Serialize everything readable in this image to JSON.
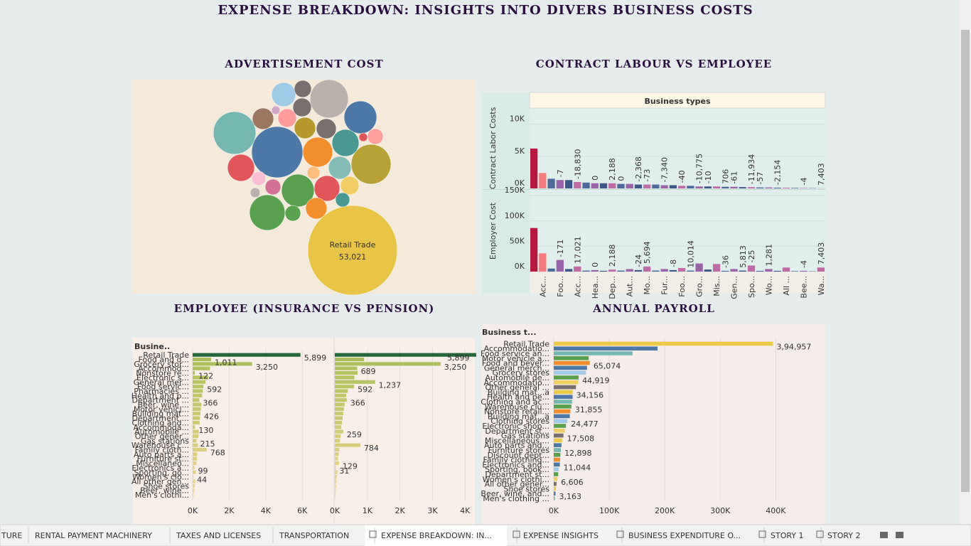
{
  "title": "EXPENSE BREAKDOWN: INSIGHTS INTO DIVERS BUSINESS COSTS",
  "tabs": [
    "TURE",
    "RENTAL PAYMENT MACHINERY",
    "TAXES AND LICENSES",
    "TRANSPORTATION",
    "EXPENSE BREAKDOWN: IN...",
    "EXPENSE INSIGHTS",
    "BUSINESS EXPENDITURE O...",
    "STORY 1",
    "STORY 2"
  ],
  "chart_data": [
    {
      "type": "bubble",
      "title": "ADVERTISEMENT COST",
      "categories": [
        "Retail Trade",
        null,
        null,
        null,
        null,
        null,
        null,
        null,
        null,
        null,
        null,
        null,
        null,
        null,
        null,
        null,
        null,
        null,
        null,
        null,
        null,
        null,
        null,
        null,
        null,
        null,
        null,
        null,
        null,
        null,
        null
      ],
      "values": [
        53021,
        17300,
        12000,
        9740,
        10470,
        7070,
        8350,
        7070,
        4820,
        5890,
        4820,
        4330,
        3860,
        3420,
        3005,
        3005,
        3005,
        2620,
        2260,
        2260,
        2260,
        1920,
        1615,
        1615,
        1615,
        1335,
        1335,
        1080,
        655,
        480,
        480
      ],
      "value_labels": [
        "53,021",
        null,
        null,
        null,
        null,
        null,
        null,
        null,
        null,
        null,
        null,
        null,
        null,
        null,
        null,
        null,
        null,
        null,
        null,
        null,
        null,
        null,
        null,
        null,
        null,
        null,
        null,
        null,
        null,
        null,
        null
      ],
      "colors": [
        "#e8c547",
        "#4e79a7",
        "#76b7b2",
        "#bab0ac",
        "#b8a135",
        "#4e79a7",
        "#59a14f",
        "#59a14f",
        "#e15759",
        "#f28e2b",
        "#499894",
        "#e15759",
        "#a0cbe8",
        "#86bcb6",
        "#b6992d",
        "#f28e2b",
        "#9d7660",
        "#79706e",
        "#ff9d9a",
        "#f1ce63",
        "#79706e",
        "#79706e",
        "#ff9d9a",
        "#d37295",
        "#59a14f",
        "#499894",
        "#fabfd2",
        "#ffbe7d",
        "#bab0ac",
        "#e15759",
        "#d4a6c8"
      ]
    },
    {
      "type": "bar",
      "title": "CONTRACT LABOUR VS EMPLOYEE",
      "header": "Business types",
      "categories": [
        null,
        "Acc...",
        null,
        "Foo...",
        null,
        "Acc...",
        null,
        "Hea...",
        null,
        "Dep...",
        null,
        "Aut...",
        null,
        "Mo...",
        null,
        "Fur...",
        null,
        "Foo...",
        null,
        "Gro...",
        null,
        "Mis...",
        null,
        "Gen...",
        null,
        "Spo...",
        null,
        "Wo...",
        null,
        "All ...",
        null,
        "Bee...",
        null,
        "Wa..."
      ],
      "colors": [
        "#b5173f",
        "#f47c7c",
        "#4e6a9c",
        "#9a62a9",
        "#3e5688",
        "#c06aa6",
        "#4e6a9c",
        "#9a62a9",
        "#3e5688",
        "#c06aa6",
        "#4e6a9c",
        "#9a62a9",
        "#3e5688",
        "#c06aa6",
        "#4e6a9c",
        "#9a62a9",
        "#3e5688",
        "#c06aa6",
        "#4e6a9c",
        "#9a62a9",
        "#3e5688",
        "#c06aa6",
        "#4e6a9c",
        "#9a62a9",
        "#3e5688",
        "#c06aa6",
        "#4e6a9c",
        "#9a62a9",
        "#3e5688",
        "#c06aa6",
        "#4e6a9c",
        "#9a62a9",
        "#3e5688",
        "#c06aa6"
      ],
      "grid": true,
      "series": [
        {
          "name": "Contract Labor Costs",
          "ylim": [
            0,
            12500
          ],
          "yticks": [
            {
              "value": 0,
              "label": "0K"
            },
            {
              "value": 5000,
              "label": "5K"
            },
            {
              "value": 10000,
              "label": "10K"
            }
          ],
          "values": [
            6200,
            2400,
            1500,
            1300,
            1300,
            1000,
            900,
            800,
            800,
            800,
            700,
            700,
            600,
            600,
            600,
            500,
            500,
            400,
            400,
            300,
            300,
            300,
            250,
            250,
            200,
            200,
            150,
            150,
            100,
            100,
            80,
            60,
            40,
            20
          ],
          "annotations": [
            null,
            null,
            null,
            "-7",
            null,
            "-18,830",
            null,
            "0",
            null,
            "2,188",
            "0",
            null,
            "-2,368",
            "-73",
            null,
            "-7,340",
            null,
            "-40",
            null,
            "-10,775",
            "-10",
            null,
            "706",
            "-61",
            null,
            "-11,934",
            "-57",
            null,
            "-2,154",
            null,
            null,
            "-4",
            null,
            "7,403"
          ]
        },
        {
          "name": "Employer Cost",
          "ylim": [
            0,
            160000
          ],
          "yticks": [
            {
              "value": 0,
              "label": "0K"
            },
            {
              "value": 50000,
              "label": "50K"
            },
            {
              "value": 100000,
              "label": "100K"
            },
            {
              "value": 150000,
              "label": "150K"
            }
          ],
          "values": [
            86000,
            36000,
            6000,
            23000,
            5000,
            10000,
            2000,
            3000,
            1500,
            4000,
            2000,
            5000,
            3000,
            10000,
            2000,
            5000,
            3000,
            7000,
            2000,
            16000,
            4000,
            15000,
            1500,
            5000,
            2000,
            12000,
            1500,
            5000,
            1500,
            8000,
            1000,
            1500,
            500,
            8000
          ],
          "annotations": [
            null,
            null,
            null,
            "-171",
            null,
            "17,021",
            null,
            "0",
            null,
            "2,188",
            null,
            null,
            "-24",
            "5,694",
            null,
            null,
            "-8",
            null,
            "10,014",
            null,
            null,
            null,
            "-36",
            null,
            "5,813",
            "-25",
            null,
            "1,281",
            null,
            null,
            null,
            "-4",
            null,
            "7,403"
          ]
        }
      ]
    },
    {
      "type": "barh",
      "title": "EMPLOYEE (INSURANCE VS PENSION)",
      "header": "Busine..",
      "top_color": "#22683a",
      "color_range": [
        "#a9bf58",
        "#f1d692"
      ],
      "grid": true,
      "categories": [
        "Retail Trade",
        "Food and d...",
        "Grocery stor...",
        "Accommod...",
        "Nonstore re...",
        "Electronic s...",
        "General mer...",
        "Food servic...",
        "Pharmacies ...",
        "Health and p...",
        "Department ...",
        "Beer, wine ...",
        "Motor vehicl...",
        "Building mat...",
        "Department ...",
        "Clothing and...",
        "Accommoda...",
        "Automobile ...",
        "Other gener...",
        "Gas stations",
        "Warehouse c...",
        "Family cloth...",
        "Auto parts a...",
        "Furniture st...",
        "Miscellaneo...",
        "Electronics a...",
        "Sporting, go...",
        "Women's clo...",
        "All other gen...",
        "Shoe stores",
        "Beer, wine...",
        "Men's clothi..."
      ],
      "series": [
        {
          "xlim": [
            0,
            7700
          ],
          "xticks": [
            {
              "value": 0,
              "label": "0K"
            },
            {
              "value": 2000,
              "label": "2K"
            },
            {
              "value": 4000,
              "label": "4K"
            },
            {
              "value": 6000,
              "label": "6K"
            }
          ],
          "values": [
            5899,
            1011,
            3250,
            950,
            122,
            850,
            700,
            592,
            560,
            520,
            366,
            480,
            450,
            426,
            400,
            380,
            130,
            340,
            320,
            215,
            290,
            768,
            250,
            230,
            210,
            99,
            180,
            44,
            150,
            120,
            90,
            60
          ],
          "value_labels": [
            "5,899",
            "1,011",
            "3,250",
            null,
            "122",
            null,
            null,
            "592",
            null,
            null,
            "366",
            null,
            null,
            "426",
            null,
            null,
            "130",
            null,
            null,
            "215",
            null,
            "768",
            null,
            null,
            null,
            "99",
            null,
            "44",
            null,
            null,
            null,
            null
          ]
        },
        {
          "xlim": [
            0,
            4300
          ],
          "xticks": [
            {
              "value": 0,
              "label": "0K"
            },
            {
              "value": 1000,
              "label": "1K"
            },
            {
              "value": 2000,
              "label": "2K"
            },
            {
              "value": 3000,
              "label": "3K"
            },
            {
              "value": 4000,
              "label": "4K"
            }
          ],
          "values": [
            5899,
            900,
            3250,
            689,
            700,
            600,
            1237,
            592,
            400,
            350,
            366,
            300,
            280,
            260,
            240,
            220,
            200,
            259,
            180,
            160,
            784,
            140,
            120,
            100,
            129,
            31,
            80,
            60,
            50,
            40,
            30,
            20
          ],
          "value_labels": [
            "5,899",
            null,
            "3,250",
            "689",
            null,
            null,
            "1,237",
            "592",
            null,
            null,
            "366",
            null,
            null,
            null,
            null,
            null,
            null,
            "259",
            null,
            null,
            "784",
            null,
            null,
            null,
            "129",
            "31",
            null,
            null,
            null,
            null,
            null,
            null
          ]
        }
      ]
    },
    {
      "type": "barh",
      "title": "ANNUAL PAYROLL",
      "header": "Business t...",
      "grid": true,
      "palette": [
        "#edc948",
        "#4e79a7",
        "#76b7b2",
        "#59a14f",
        "#f28e2b",
        "#4e79a7",
        "#a0cbe8",
        "#59a14f",
        "#f1ce63",
        "#79706e"
      ],
      "categories": [
        "Retail Trade",
        "Accommodatio...",
        "Food service an...",
        "Motor vehicle a...",
        "Food and bever...",
        "General merch...",
        "Grocery stores",
        "Automobile de...",
        "Accommodatio...",
        "Other general ...",
        "Building mat...a",
        "Health and pe...",
        "Clothing and ac...",
        "Warehouse clu...",
        "Nonstore retail...",
        "Building mat...a",
        "Clothing stores",
        "Electronic shop...",
        "Department st...",
        "Gas stations",
        "Miscellaneous ...",
        "Auto parts and...",
        "Furniture stores",
        "Discount dept...",
        "Family clothing...",
        "Electronics and...",
        "Sporting, book...",
        "Department st...",
        "Women's clothi...",
        "All other gener...",
        "Shoe stores",
        "Beer, wine, and...",
        "Men's clothing ..."
      ],
      "series": [
        {
          "xlim": [
            0,
            470000
          ],
          "xticks": [
            {
              "value": 0,
              "label": "0K"
            },
            {
              "value": 100000,
              "label": "100K"
            },
            {
              "value": 200000,
              "label": "200K"
            },
            {
              "value": 300000,
              "label": "300K"
            },
            {
              "value": 400000,
              "label": "400K"
            }
          ],
          "values": [
            394957,
            187000,
            142000,
            63000,
            65074,
            60000,
            58000,
            44919,
            44000,
            40000,
            34156,
            34000,
            33000,
            31855,
            30000,
            29000,
            24477,
            22000,
            20000,
            17508,
            15000,
            14000,
            12898,
            12000,
            11500,
            11044,
            9000,
            8000,
            6606,
            5000,
            4000,
            3163,
            2000
          ],
          "value_labels": [
            "3,94,957",
            null,
            null,
            null,
            "65,074",
            null,
            null,
            "44,919",
            null,
            null,
            "34,156",
            null,
            null,
            "31,855",
            null,
            null,
            "24,477",
            null,
            null,
            "17,508",
            null,
            null,
            "12,898",
            null,
            null,
            "11,044",
            null,
            null,
            "6,606",
            null,
            null,
            "3,163",
            null
          ]
        }
      ]
    }
  ]
}
